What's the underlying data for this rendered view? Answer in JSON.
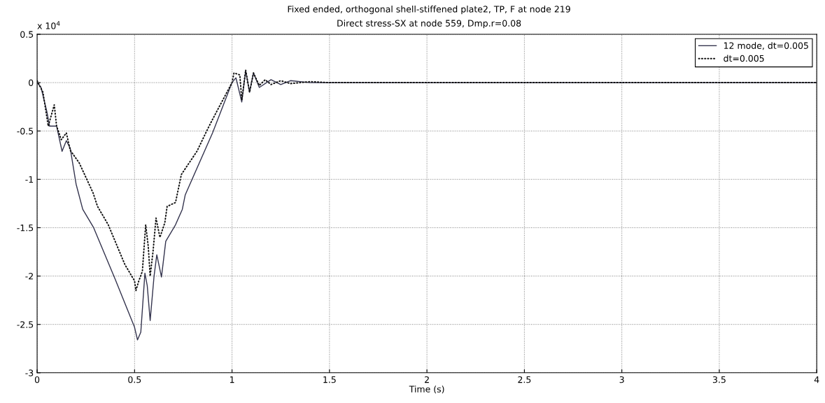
{
  "chart_data": {
    "type": "line",
    "title": "Fixed ended, orthogonal shell-stiffened plate2, TP, F at node 219",
    "subtitle": "Direct stress-SX at node 559, Dmp.r=0.08",
    "xlabel": "Time (s)",
    "annotations": [
      "x 10$^{4}$"
    ],
    "xlim": [
      0,
      4
    ],
    "xticks": [
      0,
      0.5,
      1,
      1.5,
      2,
      2.5,
      3,
      3.5,
      4
    ],
    "ylim": [
      -3,
      0.5
    ],
    "yticks": [
      0.5,
      0,
      -0.5,
      -1,
      -1.5,
      -2,
      -2.5,
      -3
    ],
    "grid": true,
    "legend": "top right",
    "series": [
      {
        "name": "12 mode, dt=0.005",
        "color": "#33334d",
        "line_style": "solid",
        "x": [
          0,
          0.02,
          0.05,
          0.064,
          0.1,
          0.128,
          0.15,
          0.17,
          0.2,
          0.234,
          0.29,
          0.4,
          0.5,
          0.515,
          0.532,
          0.553,
          0.565,
          0.58,
          0.6,
          0.614,
          0.638,
          0.66,
          0.71,
          0.745,
          0.76,
          0.9,
          1.0,
          1.02,
          1.05,
          1.07,
          1.09,
          1.11,
          1.14,
          1.2,
          1.25,
          1.3,
          1.4,
          4
        ],
        "values": [
          0,
          -0.05,
          -0.3,
          -0.45,
          -0.45,
          -0.71,
          -0.6,
          -0.68,
          -1.05,
          -1.31,
          -1.5,
          -2.03,
          -2.53,
          -2.66,
          -2.58,
          -1.97,
          -2.1,
          -2.46,
          -2.0,
          -1.78,
          -2.01,
          -1.64,
          -1.47,
          -1.31,
          -1.16,
          -0.52,
          0,
          0.05,
          -0.2,
          0.12,
          -0.1,
          0.1,
          -0.05,
          0.03,
          -0.02,
          0.02,
          0,
          0
        ]
      },
      {
        "name": "dt=0.005",
        "color": "#111111",
        "line_style": "dotted",
        "x": [
          0,
          0.03,
          0.057,
          0.088,
          0.1,
          0.124,
          0.15,
          0.17,
          0.216,
          0.287,
          0.31,
          0.365,
          0.45,
          0.5,
          0.507,
          0.52,
          0.54,
          0.557,
          0.57,
          0.58,
          0.595,
          0.61,
          0.63,
          0.655,
          0.667,
          0.71,
          0.74,
          0.82,
          0.87,
          0.9,
          1.0,
          1.01,
          1.04,
          1.05,
          1.07,
          1.09,
          1.11,
          1.14,
          1.17,
          1.2,
          1.25,
          1.3,
          1.4,
          1.5,
          4
        ],
        "values": [
          0.02,
          -0.1,
          -0.45,
          -0.23,
          -0.45,
          -0.59,
          -0.52,
          -0.7,
          -0.83,
          -1.14,
          -1.28,
          -1.47,
          -1.88,
          -2.05,
          -2.15,
          -2.06,
          -1.95,
          -1.47,
          -1.69,
          -2.0,
          -1.74,
          -1.4,
          -1.6,
          -1.45,
          -1.28,
          -1.24,
          -0.95,
          -0.71,
          -0.5,
          -0.38,
          0,
          0.1,
          0.08,
          -0.18,
          0.13,
          -0.1,
          0.1,
          -0.03,
          0.03,
          -0.02,
          0.02,
          -0.01,
          0.01,
          0,
          0
        ]
      }
    ]
  }
}
